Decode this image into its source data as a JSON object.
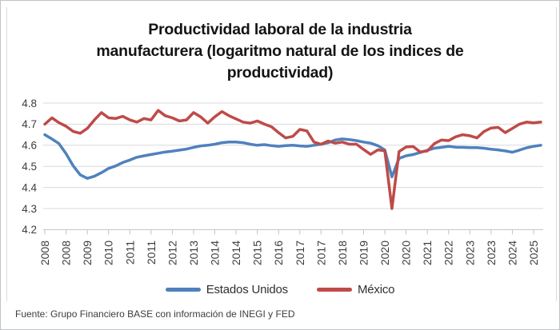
{
  "title_lines": [
    "Productividad laboral de la industria",
    "manufacturera (logaritmo natural de los indices de",
    "productividad)"
  ],
  "source_note": "Fuente: Grupo Financiero BASE con información de INEGI y FED",
  "colors": {
    "grid": "#d9d9d9",
    "axis": "#c3c3c3",
    "chart_border": "#dcdcdc",
    "axis_label": "#3d3d3d"
  },
  "chart_data": {
    "type": "line",
    "title": "Productividad laboral de la industria manufacturera (logaritmo natural de los indices de productividad)",
    "xlabel": "",
    "ylabel": "",
    "ylim": [
      4.2,
      4.8
    ],
    "y_ticks": [
      4.8,
      4.7,
      4.6,
      4.5,
      4.4,
      4.3,
      4.2
    ],
    "x_tick_labels": [
      "2008",
      "2008",
      "2009",
      "2010",
      "2011",
      "2011",
      "2012",
      "2013",
      "2014",
      "2014",
      "2015",
      "2016",
      "2017",
      "2017",
      "2018",
      "2019",
      "2020",
      "2020",
      "2021",
      "2022",
      "2023",
      "2023",
      "2024",
      "2025"
    ],
    "x_tick_every": 3,
    "x_unit": "quarterly",
    "grid": "horizontal",
    "legend_position": "bottom",
    "series": [
      {
        "name": "Estados Unidos",
        "color": "#4f81bd",
        "values": [
          4.65,
          4.63,
          4.608,
          4.56,
          4.503,
          4.46,
          4.443,
          4.453,
          4.47,
          4.49,
          4.502,
          4.518,
          4.53,
          4.543,
          4.55,
          4.556,
          4.562,
          4.568,
          4.572,
          4.577,
          4.582,
          4.59,
          4.597,
          4.6,
          4.605,
          4.612,
          4.615,
          4.615,
          4.612,
          4.605,
          4.6,
          4.603,
          4.598,
          4.595,
          4.598,
          4.6,
          4.597,
          4.595,
          4.6,
          4.605,
          4.612,
          4.625,
          4.63,
          4.627,
          4.622,
          4.615,
          4.61,
          4.598,
          4.578,
          4.45,
          4.538,
          4.55,
          4.556,
          4.566,
          4.576,
          4.586,
          4.59,
          4.595,
          4.591,
          4.59,
          4.589,
          4.589,
          4.586,
          4.581,
          4.578,
          4.573,
          4.567,
          4.577,
          4.588,
          4.595,
          4.6
        ]
      },
      {
        "name": "México",
        "color": "#be4b48",
        "values": [
          4.7,
          4.73,
          4.707,
          4.69,
          4.666,
          4.657,
          4.68,
          4.72,
          4.755,
          4.73,
          4.727,
          4.737,
          4.72,
          4.71,
          4.727,
          4.72,
          4.765,
          4.74,
          4.73,
          4.715,
          4.72,
          4.755,
          4.735,
          4.705,
          4.735,
          4.76,
          4.74,
          4.725,
          4.71,
          4.705,
          4.715,
          4.7,
          4.688,
          4.66,
          4.635,
          4.642,
          4.675,
          4.668,
          4.615,
          4.605,
          4.62,
          4.61,
          4.615,
          4.605,
          4.605,
          4.58,
          4.557,
          4.578,
          4.574,
          4.3,
          4.57,
          4.592,
          4.594,
          4.568,
          4.573,
          4.608,
          4.625,
          4.622,
          4.64,
          4.65,
          4.645,
          4.635,
          4.665,
          4.682,
          4.685,
          4.66,
          4.68,
          4.7,
          4.71,
          4.706,
          4.71
        ]
      }
    ]
  }
}
